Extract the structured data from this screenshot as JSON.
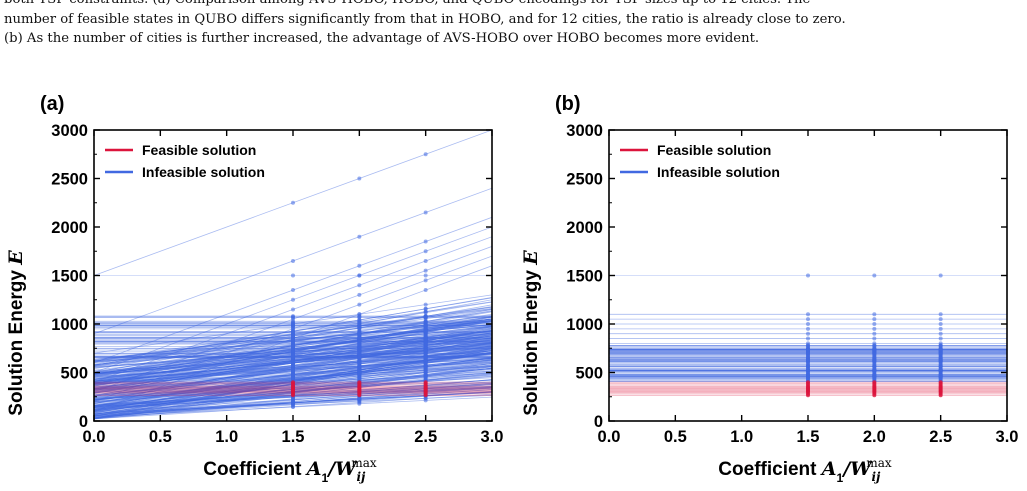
{
  "caption": {
    "line1": "both TSP constraints. (a) Comparison among AVS-HOBO, HOBO, and QUBO encodings for TSP sizes up to 12 cities. The",
    "line2": "number of feasible states in QUBO differs significantly from that in HOBO, and for 12 cities, the ratio is already close to zero.",
    "line3": "(b) As the number of cities is further increased, the advantage of AVS-HOBO over HOBO becomes more evident."
  },
  "colors": {
    "feasible": "#dc143c",
    "infeasible": "#4169e1"
  },
  "chart_data": [
    {
      "type": "line",
      "panel_label": "(a)",
      "xlabel": "Coefficient A1/W_ij^max",
      "xlabel_prefix": "Coefficient ",
      "xlabel_A": "A",
      "xlabel_sub1": "1",
      "xlabel_slash": "/",
      "xlabel_W": "W",
      "xlabel_sup": "max",
      "xlabel_sub": "ij",
      "ylabel": "Solution Energy",
      "ylabel_var": "E",
      "xlim": [
        0.0,
        3.0
      ],
      "ylim": [
        0,
        3000
      ],
      "x_ticks": [
        "0.0",
        "0.5",
        "1.0",
        "1.5",
        "2.0",
        "2.5",
        "3.0"
      ],
      "y_ticks": [
        "0",
        "500",
        "1000",
        "1500",
        "2000",
        "2500",
        "3000"
      ],
      "sample_x": [
        1.5,
        2.0,
        2.5
      ],
      "legend": [
        "Feasible solution",
        "Infeasible solution"
      ],
      "legend_position": "top-left",
      "series": [
        {
          "name": "Feasible solution",
          "color": "#dc143c",
          "lines": [
            {
              "intercept": 265,
              "slope": 0
            },
            {
              "intercept": 280,
              "slope": 0
            },
            {
              "intercept": 295,
              "slope": 0
            },
            {
              "intercept": 305,
              "slope": 0
            },
            {
              "intercept": 315,
              "slope": 0
            },
            {
              "intercept": 325,
              "slope": 0
            },
            {
              "intercept": 335,
              "slope": 0
            },
            {
              "intercept": 345,
              "slope": 0
            },
            {
              "intercept": 355,
              "slope": 0
            },
            {
              "intercept": 370,
              "slope": 0
            },
            {
              "intercept": 385,
              "slope": 0
            },
            {
              "intercept": 400,
              "slope": 0
            }
          ]
        },
        {
          "name": "Infeasible solution",
          "color": "#4169e1",
          "lines": [
            {
              "intercept": 1500,
              "slope": 500
            },
            {
              "intercept": 900,
              "slope": 500
            },
            {
              "intercept": 600,
              "slope": 500
            },
            {
              "intercept": 500,
              "slope": 500
            },
            {
              "intercept": 400,
              "slope": 500
            },
            {
              "intercept": 300,
              "slope": 500
            },
            {
              "intercept": 200,
              "slope": 500
            },
            {
              "intercept": 100,
              "slope": 500
            },
            {
              "intercept": 1500,
              "slope": 0
            },
            {
              "intercept": 500,
              "slope": 250
            },
            {
              "intercept": 400,
              "slope": 250
            },
            {
              "intercept": 300,
              "slope": 250
            },
            {
              "intercept": 200,
              "slope": 250
            },
            {
              "intercept": 100,
              "slope": 250
            },
            {
              "intercept": 30,
              "slope": 250
            },
            {
              "intercept": 700,
              "slope": 200
            },
            {
              "intercept": 600,
              "slope": 150
            },
            {
              "intercept": 550,
              "slope": 120
            }
          ]
        }
      ]
    },
    {
      "type": "line",
      "panel_label": "(b)",
      "xlabel": "Coefficient A1/W_ij^max",
      "ylabel": "Solution Energy",
      "ylabel_var": "E",
      "xlim": [
        0.0,
        3.0
      ],
      "ylim": [
        0,
        3000
      ],
      "x_ticks": [
        "0.0",
        "0.5",
        "1.0",
        "1.5",
        "2.0",
        "2.5",
        "3.0"
      ],
      "y_ticks": [
        "0",
        "500",
        "1000",
        "1500",
        "2000",
        "2500",
        "3000"
      ],
      "sample_x": [
        1.5,
        2.0,
        2.5
      ],
      "legend": [
        "Feasible solution",
        "Infeasible solution"
      ],
      "legend_position": "top-left",
      "series": [
        {
          "name": "Feasible solution",
          "color": "#dc143c",
          "levels": [
            265,
            280,
            295,
            305,
            315,
            325,
            335,
            345,
            355,
            370,
            385,
            400
          ]
        },
        {
          "name": "Infeasible solution",
          "color": "#4169e1",
          "levels": [
            1500,
            1100,
            1050,
            1000,
            950,
            900,
            850,
            800,
            780,
            760,
            740,
            720,
            700,
            680,
            660,
            640,
            620,
            600,
            580,
            560,
            540,
            520,
            500,
            480,
            460,
            440,
            420
          ]
        }
      ]
    }
  ]
}
